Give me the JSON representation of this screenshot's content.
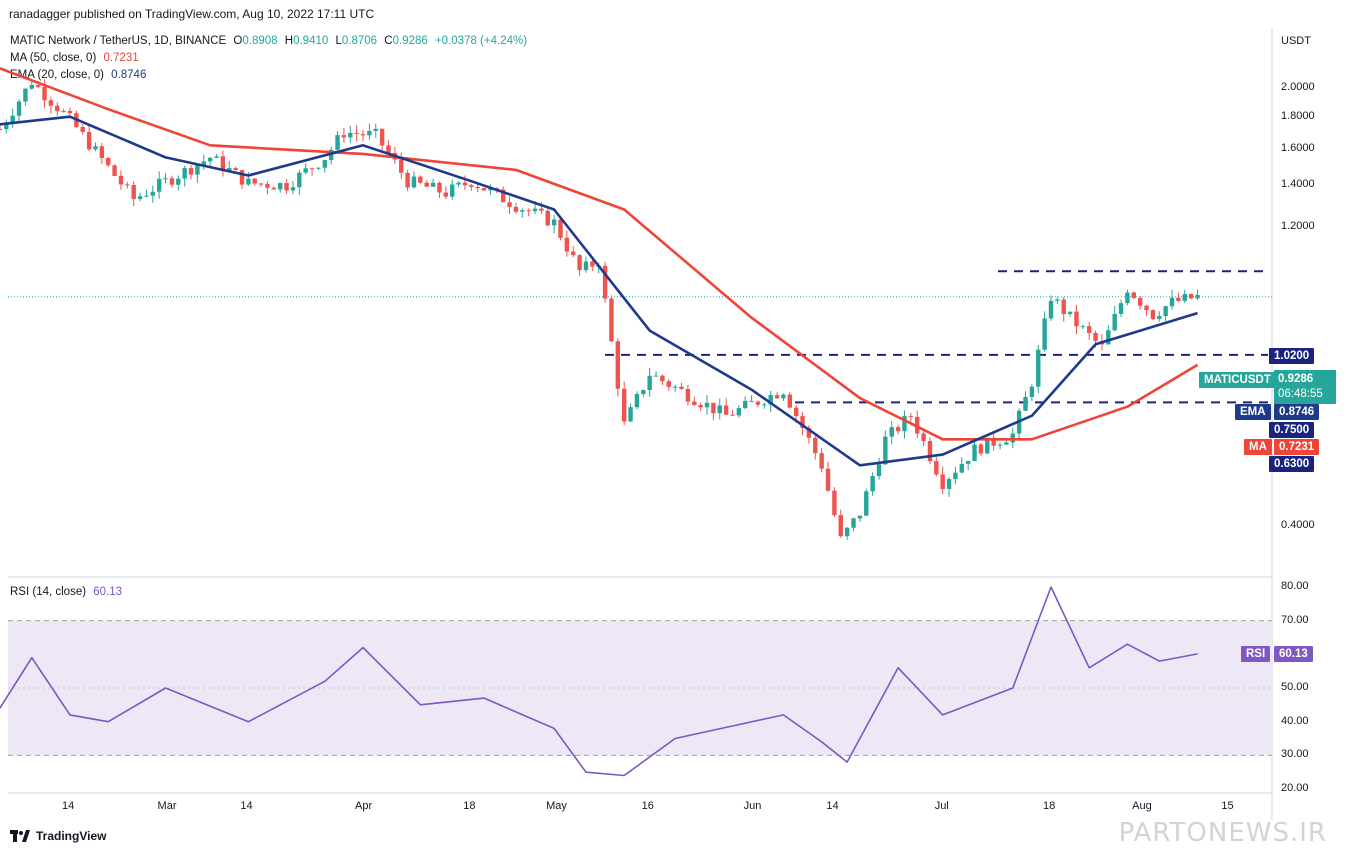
{
  "header": {
    "published": "ranadagger published on TradingView.com, Aug 10, 2022 17:11 UTC"
  },
  "legend": {
    "symbol_line": "MATIC Network / TetherUS, 1D, BINANCE",
    "ohlc": {
      "o_label": "O",
      "o": "0.8908",
      "h_label": "H",
      "h": "0.9410",
      "l_label": "L",
      "l": "0.8706",
      "c_label": "C",
      "c": "0.9286",
      "change": "+0.0378 (+4.24%)"
    },
    "ma_label": "MA (50, close, 0)",
    "ma_value": "0.7231",
    "ema_label": "EMA (20, close, 0)",
    "ema_value": "0.8746",
    "rsi_label": "RSI (14, close)",
    "rsi_value": "60.13"
  },
  "price_axis": {
    "currency": "USDT",
    "ticks": [
      "2.0000",
      "1.8000",
      "1.6000",
      "1.4000",
      "1.2000",
      "0.4000"
    ]
  },
  "rsi_axis": {
    "ticks": [
      "80.00",
      "70.00",
      "50.00",
      "40.00",
      "30.00",
      "20.00"
    ]
  },
  "time_axis": {
    "ticks": [
      "14",
      "Mar",
      "14",
      "Apr",
      "18",
      "May",
      "16",
      "Jun",
      "14",
      "Jul",
      "18",
      "Aug",
      "15"
    ]
  },
  "tags": {
    "symbol": "MATICUSDT",
    "price": "0.9286",
    "countdown": "06:48:55",
    "ema_name": "EMA",
    "ema": "0.8746",
    "ma_name": "MA",
    "ma": "0.7231",
    "rsi_name": "RSI",
    "rsi": "60.13",
    "level_1": "1.0200",
    "level_2": "0.7500",
    "level_3": "0.6300"
  },
  "colors": {
    "up": "#26a69a",
    "down": "#ef5350",
    "ema": "#1e3a8a",
    "ma": "#ef4438",
    "rsi": "#7e57c2",
    "rsi_band": "#ede7f6",
    "level": "#1a237e"
  },
  "footer": {
    "brand": "TradingView",
    "watermark": "PARTONEWS.IR"
  },
  "chart_data": {
    "type": "candlestick",
    "title": "MATIC Network / TetherUS, 1D, BINANCE",
    "ylabel": "USDT",
    "y_scale": "log",
    "ylim": [
      0.3,
      2.2
    ],
    "horizontal_levels": [
      1.02,
      0.75,
      0.63
    ],
    "key_points": [
      {
        "x": "Feb 3",
        "close": 1.72
      },
      {
        "x": "Feb 8",
        "close": 2.05
      },
      {
        "x": "Feb 14",
        "close": 1.78
      },
      {
        "x": "Feb 24",
        "close": 1.33
      },
      {
        "x": "Mar 8",
        "close": 1.55
      },
      {
        "x": "Mar 14",
        "close": 1.41
      },
      {
        "x": "Mar 20",
        "close": 1.4
      },
      {
        "x": "Mar 26",
        "close": 1.55
      },
      {
        "x": "Mar 29",
        "close": 1.7
      },
      {
        "x": "Apr 3",
        "close": 1.68
      },
      {
        "x": "Apr 8",
        "close": 1.42
      },
      {
        "x": "Apr 14",
        "close": 1.36
      },
      {
        "x": "Apr 18",
        "close": 1.42
      },
      {
        "x": "Apr 25",
        "close": 1.3
      },
      {
        "x": "May 1",
        "close": 1.22
      },
      {
        "x": "May 5",
        "close": 1.02
      },
      {
        "x": "May 8",
        "close": 1.06
      },
      {
        "x": "May 12",
        "close": 0.58
      },
      {
        "x": "May 16",
        "close": 0.7
      },
      {
        "x": "May 28",
        "close": 0.6
      },
      {
        "x": "Jun 6",
        "close": 0.66
      },
      {
        "x": "Jun 12",
        "close": 0.5
      },
      {
        "x": "Jun 15",
        "close": 0.38
      },
      {
        "x": "Jun 18",
        "close": 0.42
      },
      {
        "x": "Jun 22",
        "close": 0.55
      },
      {
        "x": "Jun 26",
        "close": 0.6
      },
      {
        "x": "Jul 1",
        "close": 0.47
      },
      {
        "x": "Jul 6",
        "close": 0.53
      },
      {
        "x": "Jul 12",
        "close": 0.56
      },
      {
        "x": "Jul 15",
        "close": 0.68
      },
      {
        "x": "Jul 18",
        "close": 0.93
      },
      {
        "x": "Jul 21",
        "close": 0.86
      },
      {
        "x": "Jul 26",
        "close": 0.77
      },
      {
        "x": "Jul 30",
        "close": 0.96
      },
      {
        "x": "Aug 3",
        "close": 0.87
      },
      {
        "x": "Aug 6",
        "close": 0.91
      },
      {
        "x": "Aug 10",
        "close": 0.9286
      }
    ],
    "series": [
      {
        "name": "EMA",
        "values": [
          {
            "x": "Feb 3",
            "y": 1.75
          },
          {
            "x": "Feb 14",
            "y": 1.8
          },
          {
            "x": "Mar 1",
            "y": 1.55
          },
          {
            "x": "Mar 14",
            "y": 1.45
          },
          {
            "x": "Apr 1",
            "y": 1.62
          },
          {
            "x": "Apr 18",
            "y": 1.42
          },
          {
            "x": "May 1",
            "y": 1.28
          },
          {
            "x": "May 16",
            "y": 0.82
          },
          {
            "x": "Jun 1",
            "y": 0.66
          },
          {
            "x": "Jun 18",
            "y": 0.5
          },
          {
            "x": "Jul 1",
            "y": 0.52
          },
          {
            "x": "Jul 15",
            "y": 0.6
          },
          {
            "x": "Jul 25",
            "y": 0.78
          },
          {
            "x": "Aug 10",
            "y": 0.8746
          }
        ]
      },
      {
        "name": "MA",
        "values": [
          {
            "x": "Feb 3",
            "y": 2.15
          },
          {
            "x": "Feb 20",
            "y": 1.85
          },
          {
            "x": "Mar 8",
            "y": 1.62
          },
          {
            "x": "Apr 1",
            "y": 1.57
          },
          {
            "x": "Apr 25",
            "y": 1.48
          },
          {
            "x": "May 12",
            "y": 1.28
          },
          {
            "x": "Jun 1",
            "y": 0.86
          },
          {
            "x": "Jun 18",
            "y": 0.64
          },
          {
            "x": "Jul 1",
            "y": 0.55
          },
          {
            "x": "Jul 15",
            "y": 0.55
          },
          {
            "x": "Jul 30",
            "y": 0.62
          },
          {
            "x": "Aug 10",
            "y": 0.7231
          }
        ]
      },
      {
        "name": "RSI",
        "values": [
          {
            "x": "Feb 3",
            "y": 44
          },
          {
            "x": "Feb 8",
            "y": 59
          },
          {
            "x": "Feb 14",
            "y": 42
          },
          {
            "x": "Feb 20",
            "y": 40
          },
          {
            "x": "Mar 1",
            "y": 50
          },
          {
            "x": "Mar 14",
            "y": 40
          },
          {
            "x": "Mar 26",
            "y": 52
          },
          {
            "x": "Apr 1",
            "y": 62
          },
          {
            "x": "Apr 10",
            "y": 45
          },
          {
            "x": "Apr 20",
            "y": 47
          },
          {
            "x": "May 1",
            "y": 38
          },
          {
            "x": "May 6",
            "y": 25
          },
          {
            "x": "May 12",
            "y": 24
          },
          {
            "x": "May 20",
            "y": 35
          },
          {
            "x": "Jun 6",
            "y": 42
          },
          {
            "x": "Jun 12",
            "y": 34
          },
          {
            "x": "Jun 16",
            "y": 28
          },
          {
            "x": "Jun 24",
            "y": 56
          },
          {
            "x": "Jul 1",
            "y": 42
          },
          {
            "x": "Jul 12",
            "y": 50
          },
          {
            "x": "Jul 18",
            "y": 80
          },
          {
            "x": "Jul 24",
            "y": 56
          },
          {
            "x": "Jul 30",
            "y": 63
          },
          {
            "x": "Aug 4",
            "y": 58
          },
          {
            "x": "Aug 10",
            "y": 60.13
          }
        ]
      }
    ],
    "rsi_levels": [
      70,
      30
    ],
    "rsi_ylim": [
      20,
      80
    ]
  }
}
